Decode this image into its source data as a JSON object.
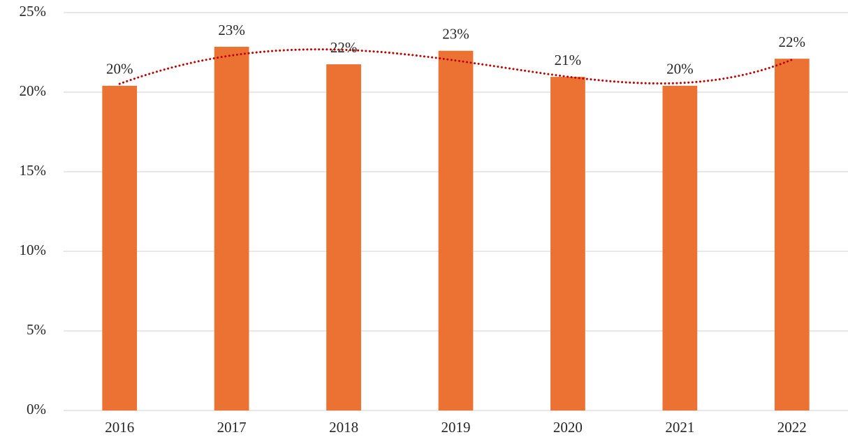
{
  "chart_data": {
    "type": "bar",
    "categories": [
      "2016",
      "2017",
      "2018",
      "2019",
      "2020",
      "2021",
      "2022"
    ],
    "values": [
      20.4,
      22.85,
      21.75,
      22.6,
      20.96,
      20.4,
      22.1
    ],
    "value_labels": [
      "20%",
      "23%",
      "22%",
      "23%",
      "21%",
      "20%",
      "22%"
    ],
    "color": "#eb7233",
    "ylim": [
      0,
      25
    ],
    "yticks": [
      {
        "value": 0,
        "label": "0%"
      },
      {
        "value": 5,
        "label": "5%"
      },
      {
        "value": 10,
        "label": "10%"
      },
      {
        "value": 15,
        "label": "15%"
      },
      {
        "value": 20,
        "label": "20%"
      },
      {
        "value": 25,
        "label": "25%"
      }
    ],
    "grid": true,
    "trendline": {
      "type": "polynomial",
      "order": 4,
      "color": "#c00000"
    }
  }
}
